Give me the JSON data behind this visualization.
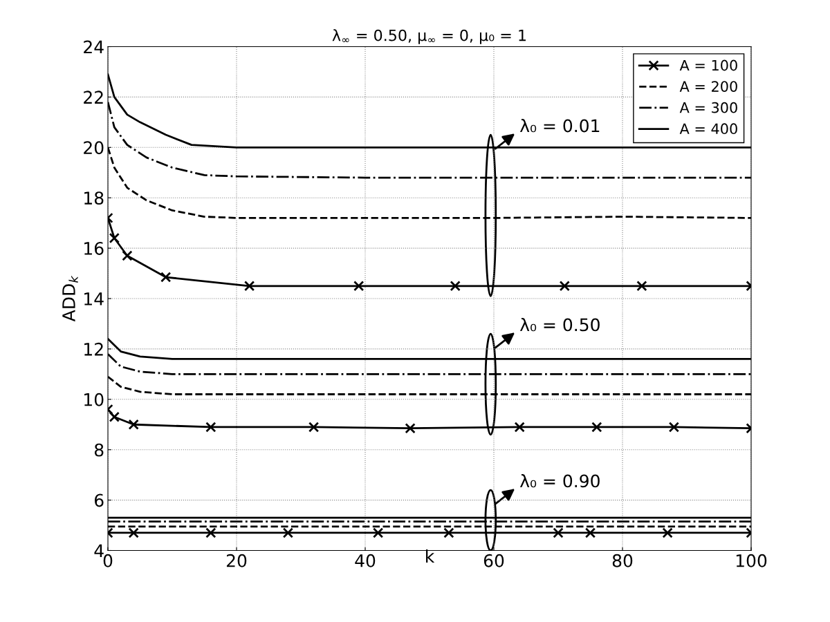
{
  "chart_data": {
    "type": "line",
    "title": "λ$_{∞}$ = 0.50, μ$_{∞}$ = 0, μ₀ = 1",
    "xlabel": "k",
    "ylabel": "ADD$_{k}$",
    "xlim": [
      0,
      100
    ],
    "xticks": [
      0,
      20,
      40,
      60,
      80,
      100
    ],
    "ylim": [
      4,
      24
    ],
    "yticks": [
      4,
      6,
      8,
      10,
      12,
      14,
      16,
      18,
      20,
      22,
      24
    ],
    "grid": true,
    "legend": "top right",
    "series": [
      {
        "name": "A = 100",
        "color": "#000000",
        "marker": "cross",
        "line_style": "solid",
        "x": [
          0,
          1,
          3,
          9,
          22,
          39,
          54,
          71,
          83,
          100
        ],
        "values": [
          17.2,
          16.4,
          15.7,
          14.85,
          14.5,
          14.5,
          14.5,
          14.5,
          14.5,
          14.5
        ]
      },
      {
        "name": "A = 200",
        "color": "#000000",
        "line_style": "dashed",
        "x": [
          0,
          1,
          3,
          6,
          10,
          15,
          20,
          40,
          60,
          80,
          100
        ],
        "values": [
          20.0,
          19.2,
          18.4,
          17.9,
          17.5,
          17.25,
          17.2,
          17.2,
          17.2,
          17.25,
          17.2
        ]
      },
      {
        "name": "A = 300",
        "color": "#000000",
        "line_style": "dashdot",
        "x": [
          0,
          1,
          3,
          6,
          10,
          15,
          20,
          40,
          60,
          80,
          100
        ],
        "values": [
          21.8,
          20.8,
          20.1,
          19.6,
          19.2,
          18.9,
          18.85,
          18.8,
          18.8,
          18.8,
          18.8
        ]
      },
      {
        "name": "A = 400",
        "color": "#000000",
        "line_style": "solid",
        "x": [
          0,
          1,
          3,
          5,
          9,
          13,
          20,
          40,
          60,
          80,
          100
        ],
        "values": [
          22.9,
          22.0,
          21.3,
          21.0,
          20.5,
          20.1,
          20.0,
          20.0,
          20.0,
          20.0,
          20.0
        ]
      },
      {
        "color": "#000000",
        "marker": "cross",
        "line_style": "solid",
        "x": [
          0,
          1,
          4,
          16,
          32,
          47,
          64,
          76,
          88,
          100
        ],
        "values": [
          9.6,
          9.3,
          9.0,
          8.9,
          8.9,
          8.85,
          8.9,
          8.9,
          8.9,
          8.85
        ]
      },
      {
        "color": "#000000",
        "line_style": "dashed",
        "x": [
          0,
          2,
          5,
          10,
          50,
          100
        ],
        "values": [
          10.9,
          10.5,
          10.3,
          10.2,
          10.2,
          10.2
        ]
      },
      {
        "color": "#000000",
        "line_style": "dashdot",
        "x": [
          0,
          2,
          5,
          10,
          50,
          100
        ],
        "values": [
          11.8,
          11.3,
          11.1,
          11.0,
          11.0,
          11.0
        ]
      },
      {
        "color": "#000000",
        "line_style": "solid",
        "x": [
          0,
          2,
          5,
          10,
          50,
          100
        ],
        "values": [
          12.4,
          11.9,
          11.7,
          11.6,
          11.6,
          11.6
        ]
      },
      {
        "color": "#000000",
        "marker": "cross",
        "line_style": "solid",
        "x": [
          0,
          4,
          16,
          28,
          42,
          53,
          70,
          75,
          87,
          100
        ],
        "values": [
          4.7,
          4.7,
          4.7,
          4.7,
          4.7,
          4.7,
          4.7,
          4.7,
          4.7,
          4.7
        ]
      },
      {
        "color": "#000000",
        "line_style": "dashed",
        "x": [
          0,
          10,
          30,
          50,
          70,
          90,
          100
        ],
        "values": [
          4.95,
          4.95,
          4.95,
          4.95,
          4.95,
          4.95,
          4.95
        ]
      },
      {
        "color": "#000000",
        "line_style": "dashdot",
        "x": [
          0,
          10,
          30,
          50,
          70,
          90,
          100
        ],
        "values": [
          5.15,
          5.15,
          5.15,
          5.15,
          5.15,
          5.15,
          5.15
        ]
      },
      {
        "color": "#000000",
        "line_style": "solid",
        "x": [
          0,
          10,
          30,
          50,
          70,
          90,
          100
        ],
        "values": [
          5.3,
          5.3,
          5.3,
          5.3,
          5.3,
          5.3,
          5.3
        ]
      }
    ],
    "annotations": [
      "λ₀ = 0.01",
      "λ₀ = 0.50",
      "λ₀ = 0.90"
    ]
  }
}
